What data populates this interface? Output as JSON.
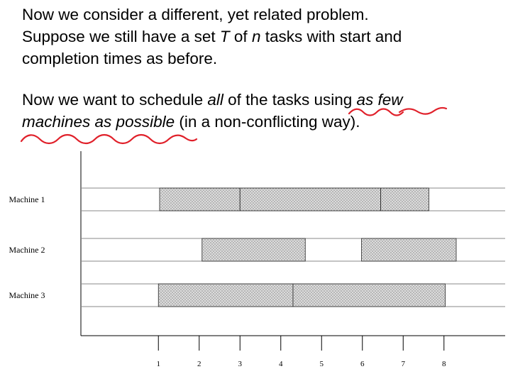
{
  "paragraph1": {
    "line1": "Now we consider a different, yet related problem.",
    "line2_a": "Suppose we still have a set ",
    "line2_T": "T",
    "line2_b": " of ",
    "line2_n": "n",
    "line2_c": " tasks with start and",
    "line3": "completion times as before."
  },
  "paragraph2": {
    "line1_a": "Now we want to schedule ",
    "line1_all": "all",
    "line1_b": " of the tasks using ",
    "line1_asfew": "as few",
    "line2_em": "machines as possible",
    "line2_b": " (in a non-conflicting way)."
  },
  "annotation_color": "#e0202a",
  "task_fill": "#d4d4d4",
  "chart_data": {
    "type": "gantt",
    "x_ticks": [
      1,
      2,
      3,
      4,
      5,
      6,
      7,
      8
    ],
    "x_tick_labels": [
      "1",
      "2",
      "3",
      "4",
      "5",
      "6",
      "7",
      "8"
    ],
    "xlim": [
      -0.9,
      9.5
    ],
    "rows": [
      {
        "label": "Machine 1",
        "tasks": [
          [
            1.03,
            3.0
          ],
          [
            3.0,
            6.45
          ],
          [
            6.45,
            7.63
          ]
        ]
      },
      {
        "label": "Machine 2",
        "tasks": [
          [
            2.07,
            4.6
          ],
          [
            5.98,
            8.3
          ]
        ]
      },
      {
        "label": "Machine 3",
        "tasks": [
          [
            1.0,
            4.3
          ],
          [
            4.3,
            8.03
          ]
        ]
      }
    ]
  }
}
